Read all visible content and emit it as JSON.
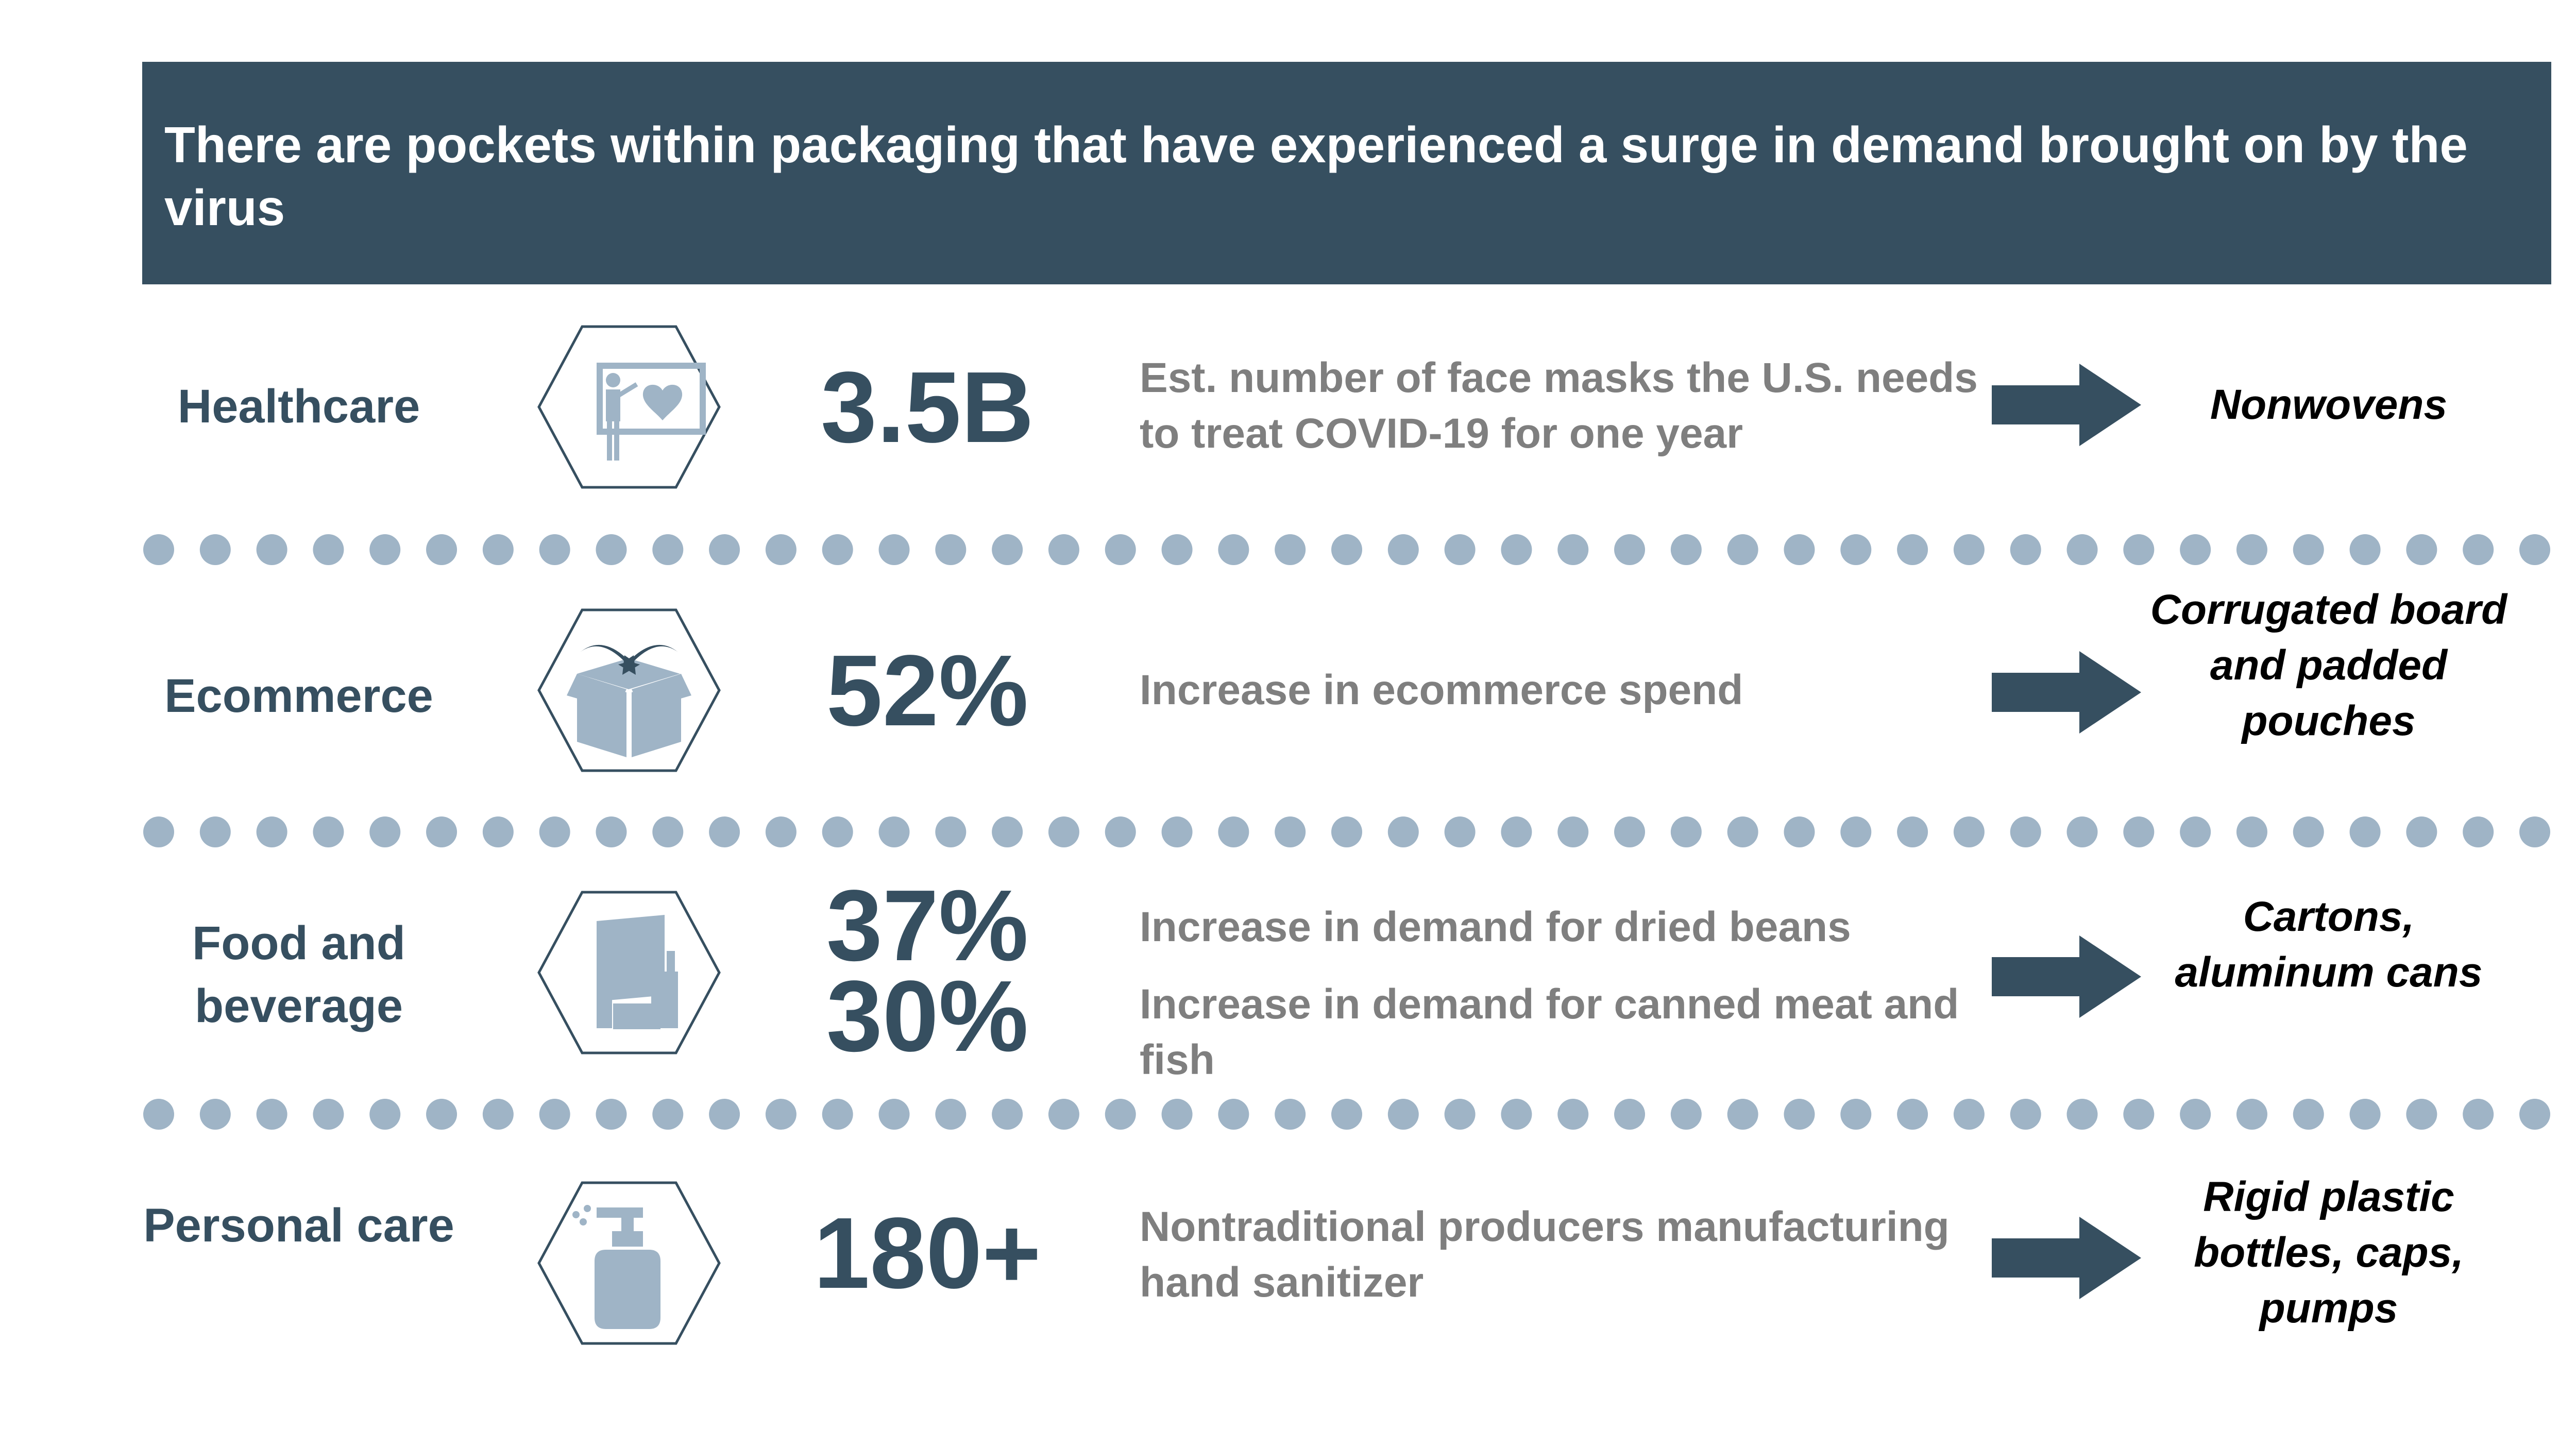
{
  "header": {
    "title": "There are pockets within packaging that have experienced a surge in demand brought on by the virus"
  },
  "colors": {
    "banner": "#364f60",
    "icon_fill": "#9fb4c6",
    "icon_outline": "#364f60",
    "dots": "#9fb4c6",
    "description": "#7f7f7f"
  },
  "rows": [
    {
      "category": "Healthcare",
      "icon": "presentation-heart-icon",
      "stat": "3.5B",
      "description": "Est. number of face masks the U.S. needs to treat COVID-19 for one year",
      "result": "Nonwovens"
    },
    {
      "category": "Ecommerce",
      "icon": "open-box-icon",
      "stat": "52%",
      "description": "Increase in ecommerce spend",
      "result": "Corrugated board and padded pouches"
    },
    {
      "category": "Food and beverage",
      "icon": "food-bottle-icon",
      "stats": [
        {
          "value": "37%",
          "description": "Increase in demand for dried beans"
        },
        {
          "value": "30%",
          "description": "Increase in demand for canned meat and fish"
        }
      ],
      "result": "Cartons, aluminum cans"
    },
    {
      "category": "Personal care",
      "icon": "pump-bottle-icon",
      "stat": "180+",
      "description": "Nontraditional producers manufacturing hand sanitizer",
      "result": "Rigid plastic bottles, caps, pumps"
    }
  ]
}
